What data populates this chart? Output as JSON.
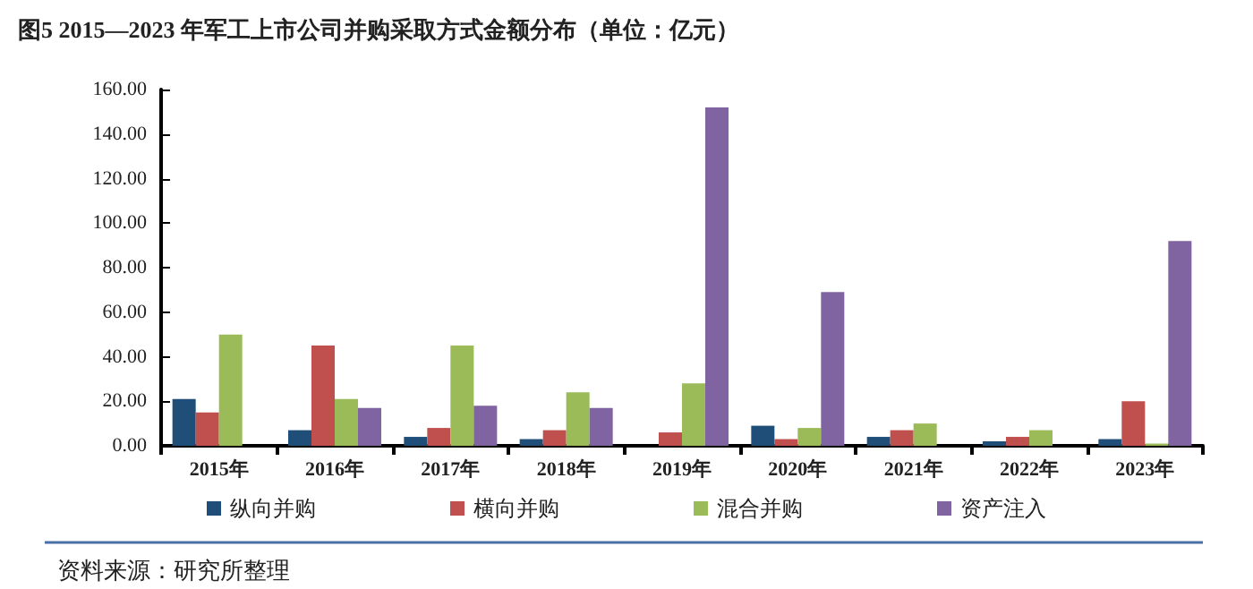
{
  "chart_data": {
    "type": "bar",
    "title": "图5 2015—2023 年军工上市公司并购采取方式金额分布（单位：亿元）",
    "categories": [
      "2015年",
      "2016年",
      "2017年",
      "2018年",
      "2019年",
      "2020年",
      "2021年",
      "2022年",
      "2023年"
    ],
    "series": [
      {
        "name": "纵向并购",
        "color": "#1f4e79",
        "values": [
          21,
          7,
          4,
          3,
          0,
          9,
          4,
          2,
          3
        ]
      },
      {
        "name": "横向并购",
        "color": "#c0504d",
        "values": [
          15,
          45,
          8,
          7,
          6,
          3,
          7,
          4,
          20
        ]
      },
      {
        "name": "混合并购",
        "color": "#9bbb59",
        "values": [
          50,
          21,
          45,
          24,
          28,
          8,
          10,
          7,
          1
        ]
      },
      {
        "name": "资产注入",
        "color": "#8064a2",
        "values": [
          0,
          17,
          18,
          17,
          152,
          69,
          0,
          0,
          92
        ]
      }
    ],
    "ylim": [
      0,
      160
    ],
    "yticks": [
      {
        "value": 0,
        "label": "0.00"
      },
      {
        "value": 20,
        "label": "20.00"
      },
      {
        "value": 40,
        "label": "40.00"
      },
      {
        "value": 60,
        "label": "60.00"
      },
      {
        "value": 80,
        "label": "80.00"
      },
      {
        "value": 100,
        "label": "100.00"
      },
      {
        "value": 120,
        "label": "120.00"
      },
      {
        "value": 140,
        "label": "140.00"
      },
      {
        "value": 160,
        "label": "160.00"
      }
    ],
    "grid": false,
    "legend": "bottom",
    "annotations": [
      "资料来源：研究所整理"
    ]
  }
}
